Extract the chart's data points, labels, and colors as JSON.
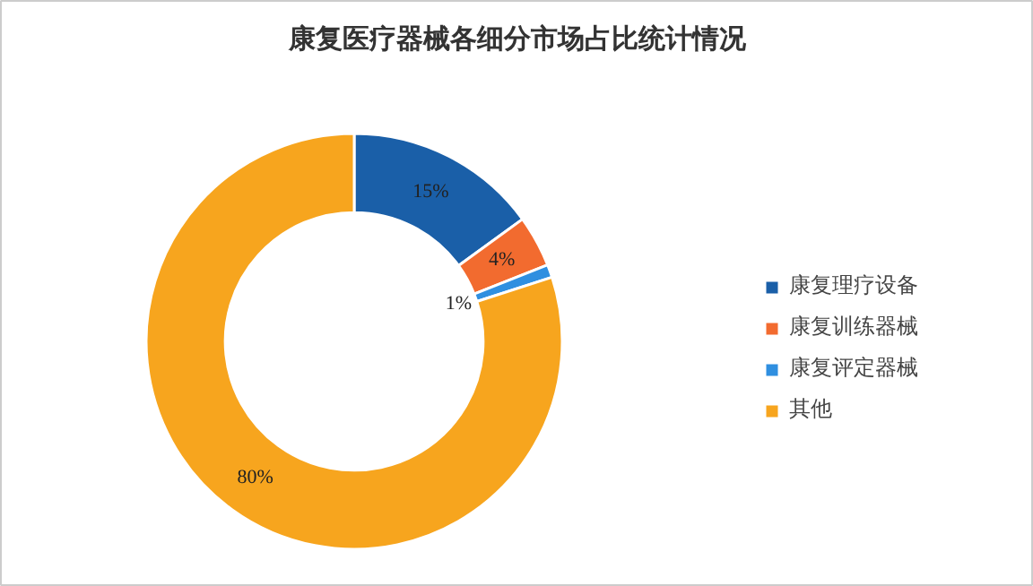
{
  "chart_data": {
    "type": "donut",
    "title": "康复医疗器械各细分市场占比统计情况",
    "categories": [
      "康复理疗设备",
      "康复训练器械",
      "康复评定器械",
      "其他"
    ],
    "values": [
      15,
      4,
      1,
      80
    ],
    "colors": [
      "#1a5fa8",
      "#f26b2f",
      "#2f8fe0",
      "#f7a51e"
    ],
    "value_labels": [
      "15%",
      "4%",
      "1%",
      "80%"
    ],
    "legend": "right"
  }
}
